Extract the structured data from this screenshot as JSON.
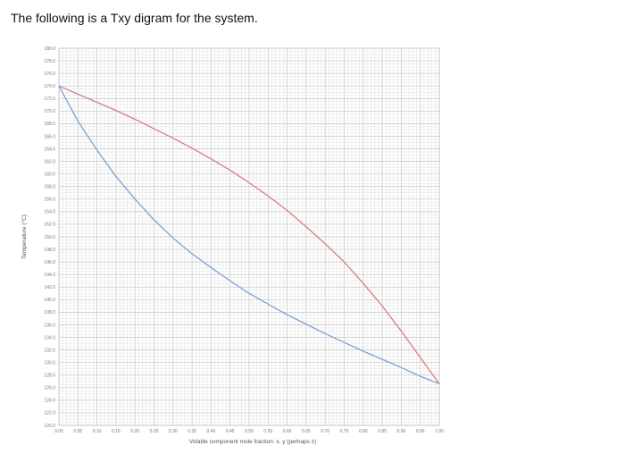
{
  "heading": "The following is a Txy digram for the system.",
  "chart_data": {
    "type": "line",
    "xlabel": "Volatile component mole fraction: x, y (perhaps z)",
    "ylabel": "Temperature (°C)",
    "xlim": [
      0,
      1
    ],
    "ylim": [
      120,
      180
    ],
    "x_ticks": [
      0,
      0.05,
      0.1,
      0.15,
      0.2,
      0.25,
      0.3,
      0.35,
      0.4,
      0.45,
      0.5,
      0.55,
      0.6,
      0.65,
      0.7,
      0.75,
      0.8,
      0.85,
      0.9,
      0.95,
      1.0
    ],
    "x_tick_labels": [
      "0.00",
      "0.05",
      "0.10",
      "0.15",
      "0.20",
      "0.25",
      "0.30",
      "0.35",
      "0.40",
      "0.45",
      "0.50",
      "0.55",
      "0.60",
      "0.65",
      "0.70",
      "0.75",
      "0.80",
      "0.85",
      "0.90",
      "0.95",
      "1.00"
    ],
    "y_ticks": [
      120,
      122,
      124,
      126,
      128,
      130,
      132,
      134,
      136,
      138,
      140,
      142,
      144,
      146,
      148,
      150,
      152,
      154,
      156,
      158,
      160,
      162,
      164,
      166,
      168,
      170,
      172,
      174,
      176,
      178,
      180
    ],
    "y_tick_labels": [
      "120.0",
      "122.0",
      "124.0",
      "126.0",
      "128.0",
      "130.0",
      "132.0",
      "134.0",
      "136.0",
      "138.0",
      "140.0",
      "142.0",
      "144.0",
      "146.0",
      "148.0",
      "150.0",
      "152.0",
      "154.0",
      "156.0",
      "158.0",
      "160.0",
      "162.0",
      "164.0",
      "166.0",
      "168.0",
      "170.0",
      "172.0",
      "174.0",
      "176.0",
      "178.0",
      "180.0"
    ],
    "grid": true,
    "series": [
      {
        "color": "#7ea2d6",
        "x": [
          0,
          0.05,
          0.1,
          0.15,
          0.2,
          0.25,
          0.3,
          0.35,
          0.4,
          0.45,
          0.5,
          0.55,
          0.6,
          0.65,
          0.7,
          0.75,
          0.8,
          0.85,
          0.9,
          0.95,
          1.0
        ],
        "y": [
          174.0,
          168.4,
          163.8,
          159.6,
          156.0,
          152.7,
          149.8,
          147.3,
          145.1,
          143.0,
          141.0,
          139.3,
          137.6,
          136.1,
          134.6,
          133.2,
          131.8,
          130.5,
          129.2,
          127.8,
          126.6
        ]
      },
      {
        "color": "#d47f82",
        "x": [
          0,
          0.05,
          0.1,
          0.15,
          0.2,
          0.25,
          0.3,
          0.35,
          0.4,
          0.45,
          0.5,
          0.55,
          0.6,
          0.65,
          0.7,
          0.75,
          0.8,
          0.85,
          0.9,
          0.95,
          1.0
        ],
        "y": [
          174.0,
          172.7,
          171.4,
          170.1,
          168.7,
          167.2,
          165.7,
          164.1,
          162.4,
          160.6,
          158.6,
          156.5,
          154.2,
          151.6,
          148.9,
          146.0,
          142.6,
          139.0,
          135.0,
          130.8,
          126.6
        ]
      }
    ]
  }
}
